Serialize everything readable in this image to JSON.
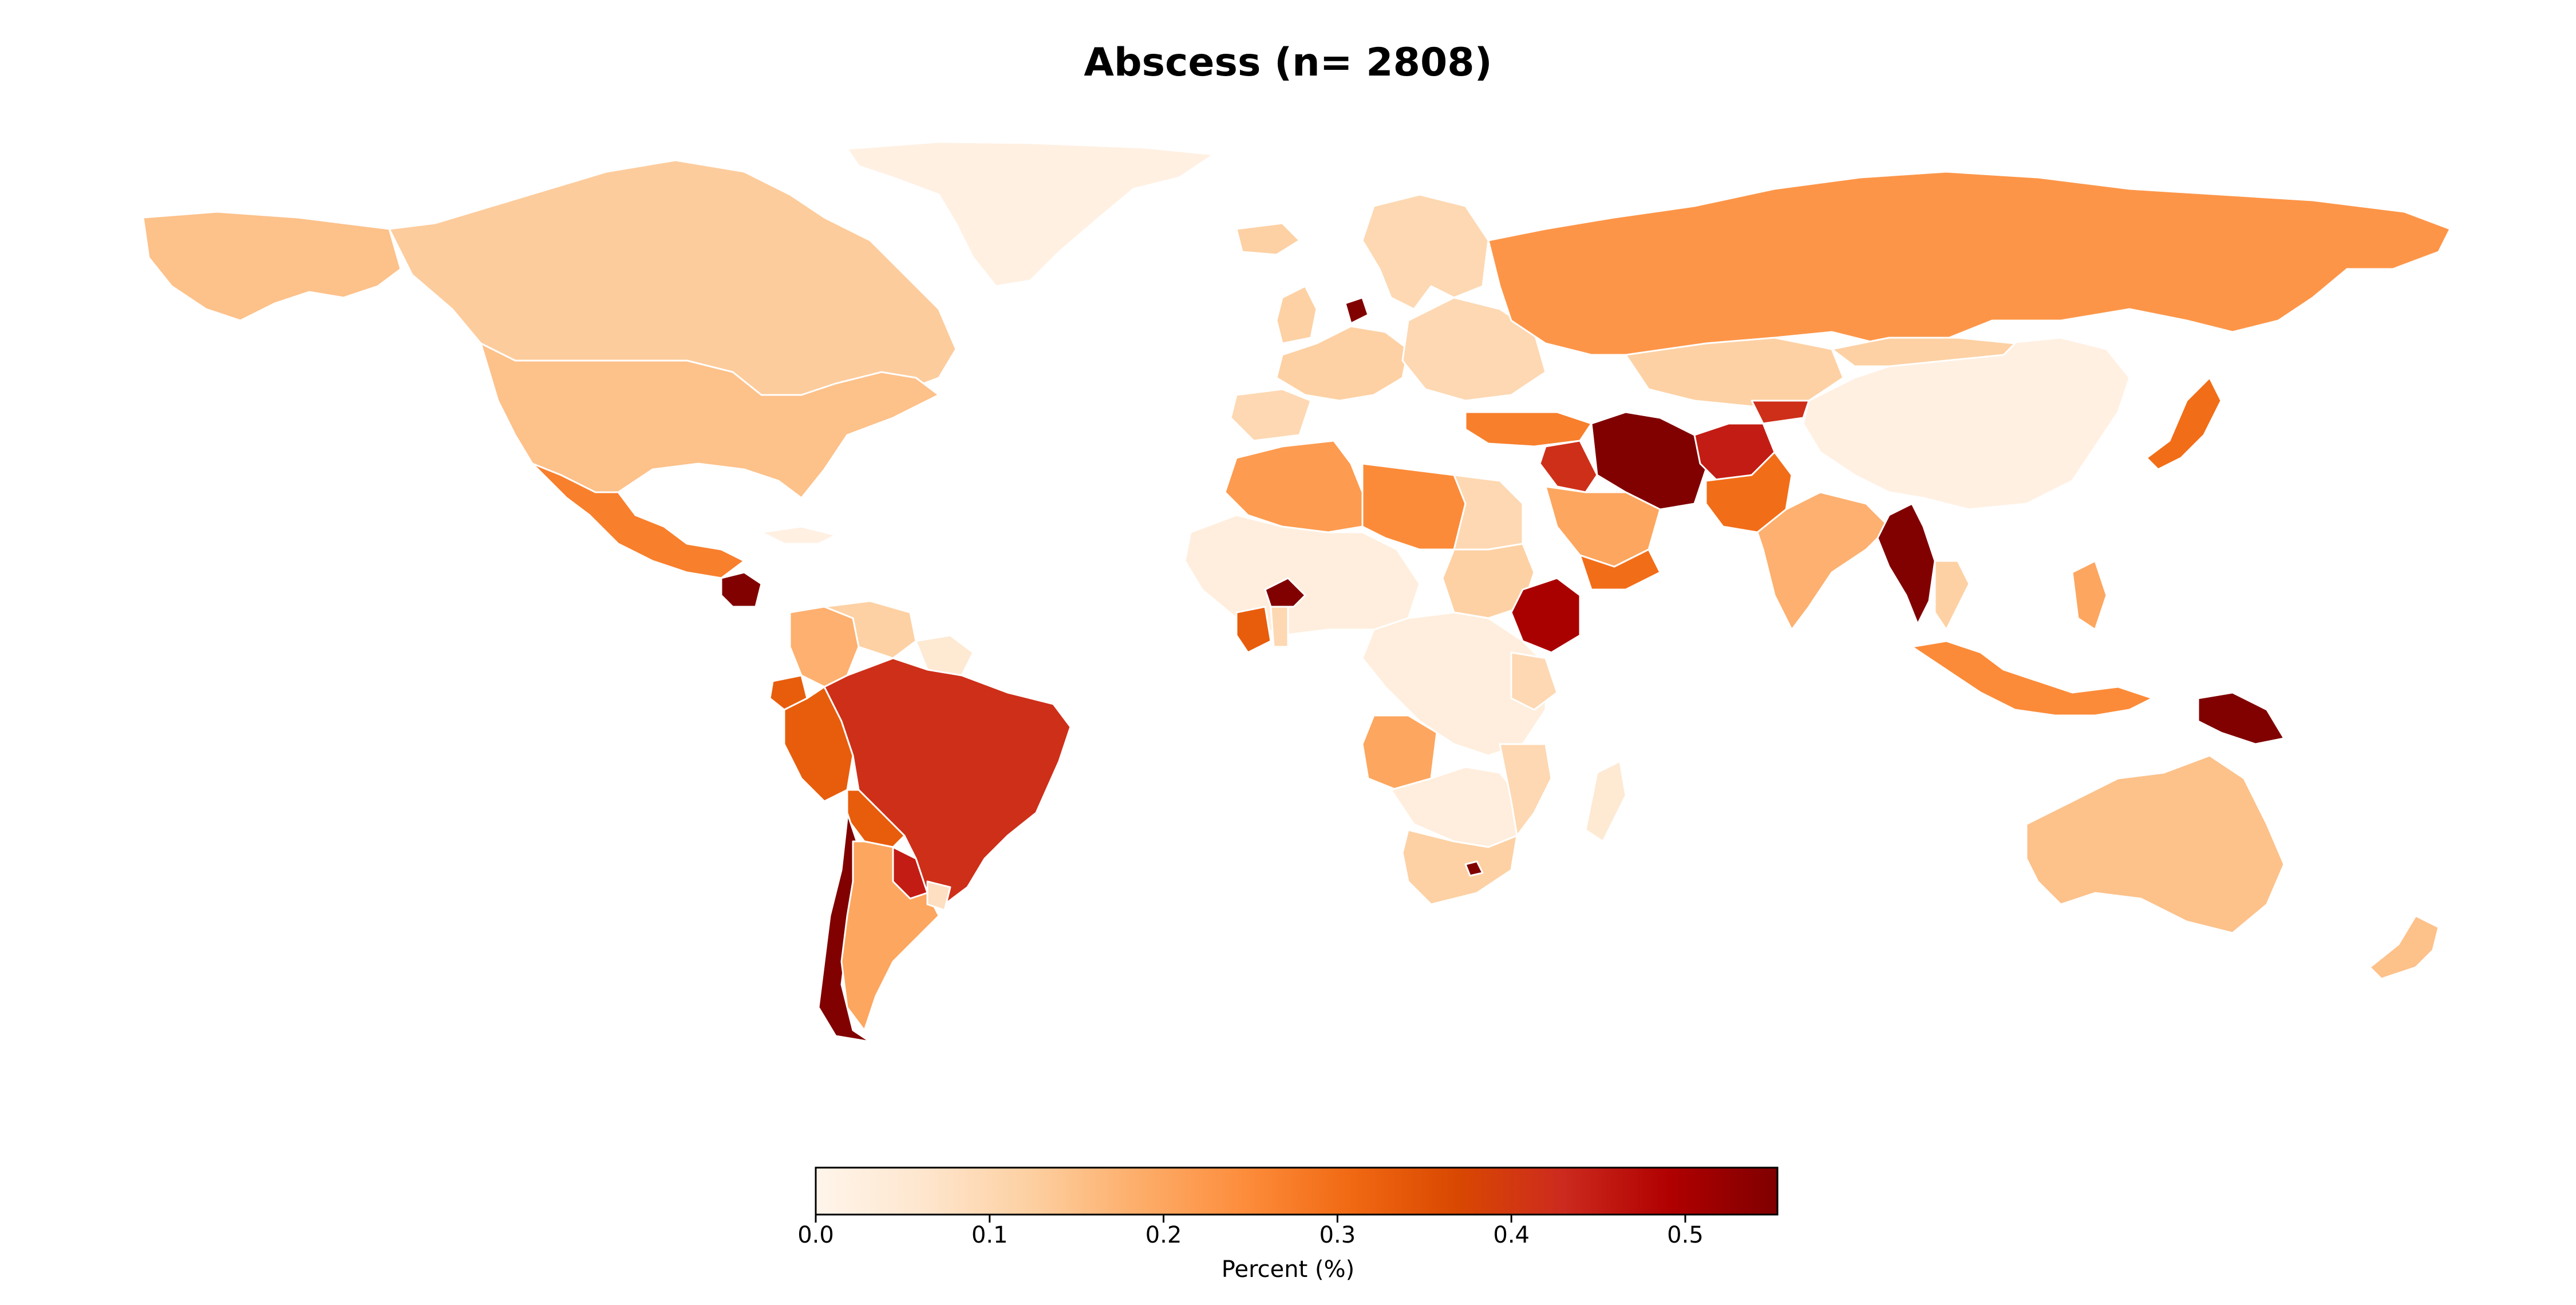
{
  "title": "Abscess (n= 2808)",
  "colorbar": {
    "label": "Percent (%)",
    "min": 0.0,
    "max": 0.553,
    "ticks": [
      "0.0",
      "0.1",
      "0.2",
      "0.3",
      "0.4",
      "0.5"
    ],
    "tick_values": [
      0.0,
      0.1,
      0.2,
      0.3,
      0.4,
      0.5
    ],
    "colormap": [
      "#fff5eb",
      "#fee6ce",
      "#fdd0a2",
      "#fdae6b",
      "#fd8d3c",
      "#f16913",
      "#d94801",
      "#cc2a1e",
      "#b00000",
      "#7f0000"
    ],
    "colormap_name": "OrRd"
  },
  "chart_data": {
    "type": "choropleth",
    "title": "Abscess (n= 2808)",
    "value_label": "Percent (%)",
    "range": [
      0.0,
      0.553
    ],
    "regions": [
      {
        "name": "Greenland",
        "value": 0.02
      },
      {
        "name": "Canada",
        "value": 0.13
      },
      {
        "name": "Alaska (USA)",
        "value": 0.15
      },
      {
        "name": "United States",
        "value": 0.15
      },
      {
        "name": "Mexico",
        "value": 0.27
      },
      {
        "name": "Guatemala",
        "value": 0.55
      },
      {
        "name": "Cuba",
        "value": 0.02
      },
      {
        "name": "Colombia",
        "value": 0.18
      },
      {
        "name": "Venezuela",
        "value": 0.12
      },
      {
        "name": "Guyana",
        "value": 0.05
      },
      {
        "name": "Ecuador",
        "value": 0.33
      },
      {
        "name": "Peru",
        "value": 0.33
      },
      {
        "name": "Brazil",
        "value": 0.42
      },
      {
        "name": "Bolivia",
        "value": 0.33
      },
      {
        "name": "Paraguay",
        "value": 0.45
      },
      {
        "name": "Chile",
        "value": 0.55
      },
      {
        "name": "Argentina",
        "value": 0.2
      },
      {
        "name": "Uruguay",
        "value": 0.08
      },
      {
        "name": "Iceland",
        "value": 0.12
      },
      {
        "name": "United Kingdom",
        "value": 0.12
      },
      {
        "name": "Scandinavia",
        "value": 0.1
      },
      {
        "name": "Denmark",
        "value": 0.55
      },
      {
        "name": "Western Europe",
        "value": 0.12
      },
      {
        "name": "Spain",
        "value": 0.1
      },
      {
        "name": "Eastern Europe",
        "value": 0.1
      },
      {
        "name": "Russia",
        "value": 0.23
      },
      {
        "name": "Kazakhstan",
        "value": 0.12
      },
      {
        "name": "Turkey",
        "value": 0.27
      },
      {
        "name": "Iran",
        "value": 0.55
      },
      {
        "name": "Iraq",
        "value": 0.42
      },
      {
        "name": "Afghanistan",
        "value": 0.45
      },
      {
        "name": "Pakistan",
        "value": 0.3
      },
      {
        "name": "Kyrgyzstan",
        "value": 0.42
      },
      {
        "name": "Saudi Arabia",
        "value": 0.2
      },
      {
        "name": "Yemen",
        "value": 0.3
      },
      {
        "name": "India",
        "value": 0.18
      },
      {
        "name": "China",
        "value": 0.02
      },
      {
        "name": "Mongolia",
        "value": 0.12
      },
      {
        "name": "Japan",
        "value": 0.3
      },
      {
        "name": "Myanmar",
        "value": 0.55
      },
      {
        "name": "Thailand",
        "value": 0.12
      },
      {
        "name": "Indonesia",
        "value": 0.25
      },
      {
        "name": "Philippines",
        "value": 0.2
      },
      {
        "name": "Papua New Guinea",
        "value": 0.55
      },
      {
        "name": "Australia",
        "value": 0.15
      },
      {
        "name": "New Zealand",
        "value": 0.15
      },
      {
        "name": "North Africa",
        "value": 0.22
      },
      {
        "name": "Libya",
        "value": 0.25
      },
      {
        "name": "Egypt",
        "value": 0.1
      },
      {
        "name": "West Africa",
        "value": 0.03
      },
      {
        "name": "Burkina Faso",
        "value": 0.55
      },
      {
        "name": "Cote d'Ivoire",
        "value": 0.33
      },
      {
        "name": "Ghana",
        "value": 0.1
      },
      {
        "name": "Sudan",
        "value": 0.12
      },
      {
        "name": "Ethiopia",
        "value": 0.5
      },
      {
        "name": "Central Africa",
        "value": 0.03
      },
      {
        "name": "Kenya",
        "value": 0.1
      },
      {
        "name": "Angola",
        "value": 0.2
      },
      {
        "name": "Southern Africa",
        "value": 0.03
      },
      {
        "name": "Mozambique",
        "value": 0.1
      },
      {
        "name": "South Africa",
        "value": 0.12
      },
      {
        "name": "Lesotho",
        "value": 0.55
      },
      {
        "name": "Madagascar",
        "value": 0.05
      }
    ]
  }
}
